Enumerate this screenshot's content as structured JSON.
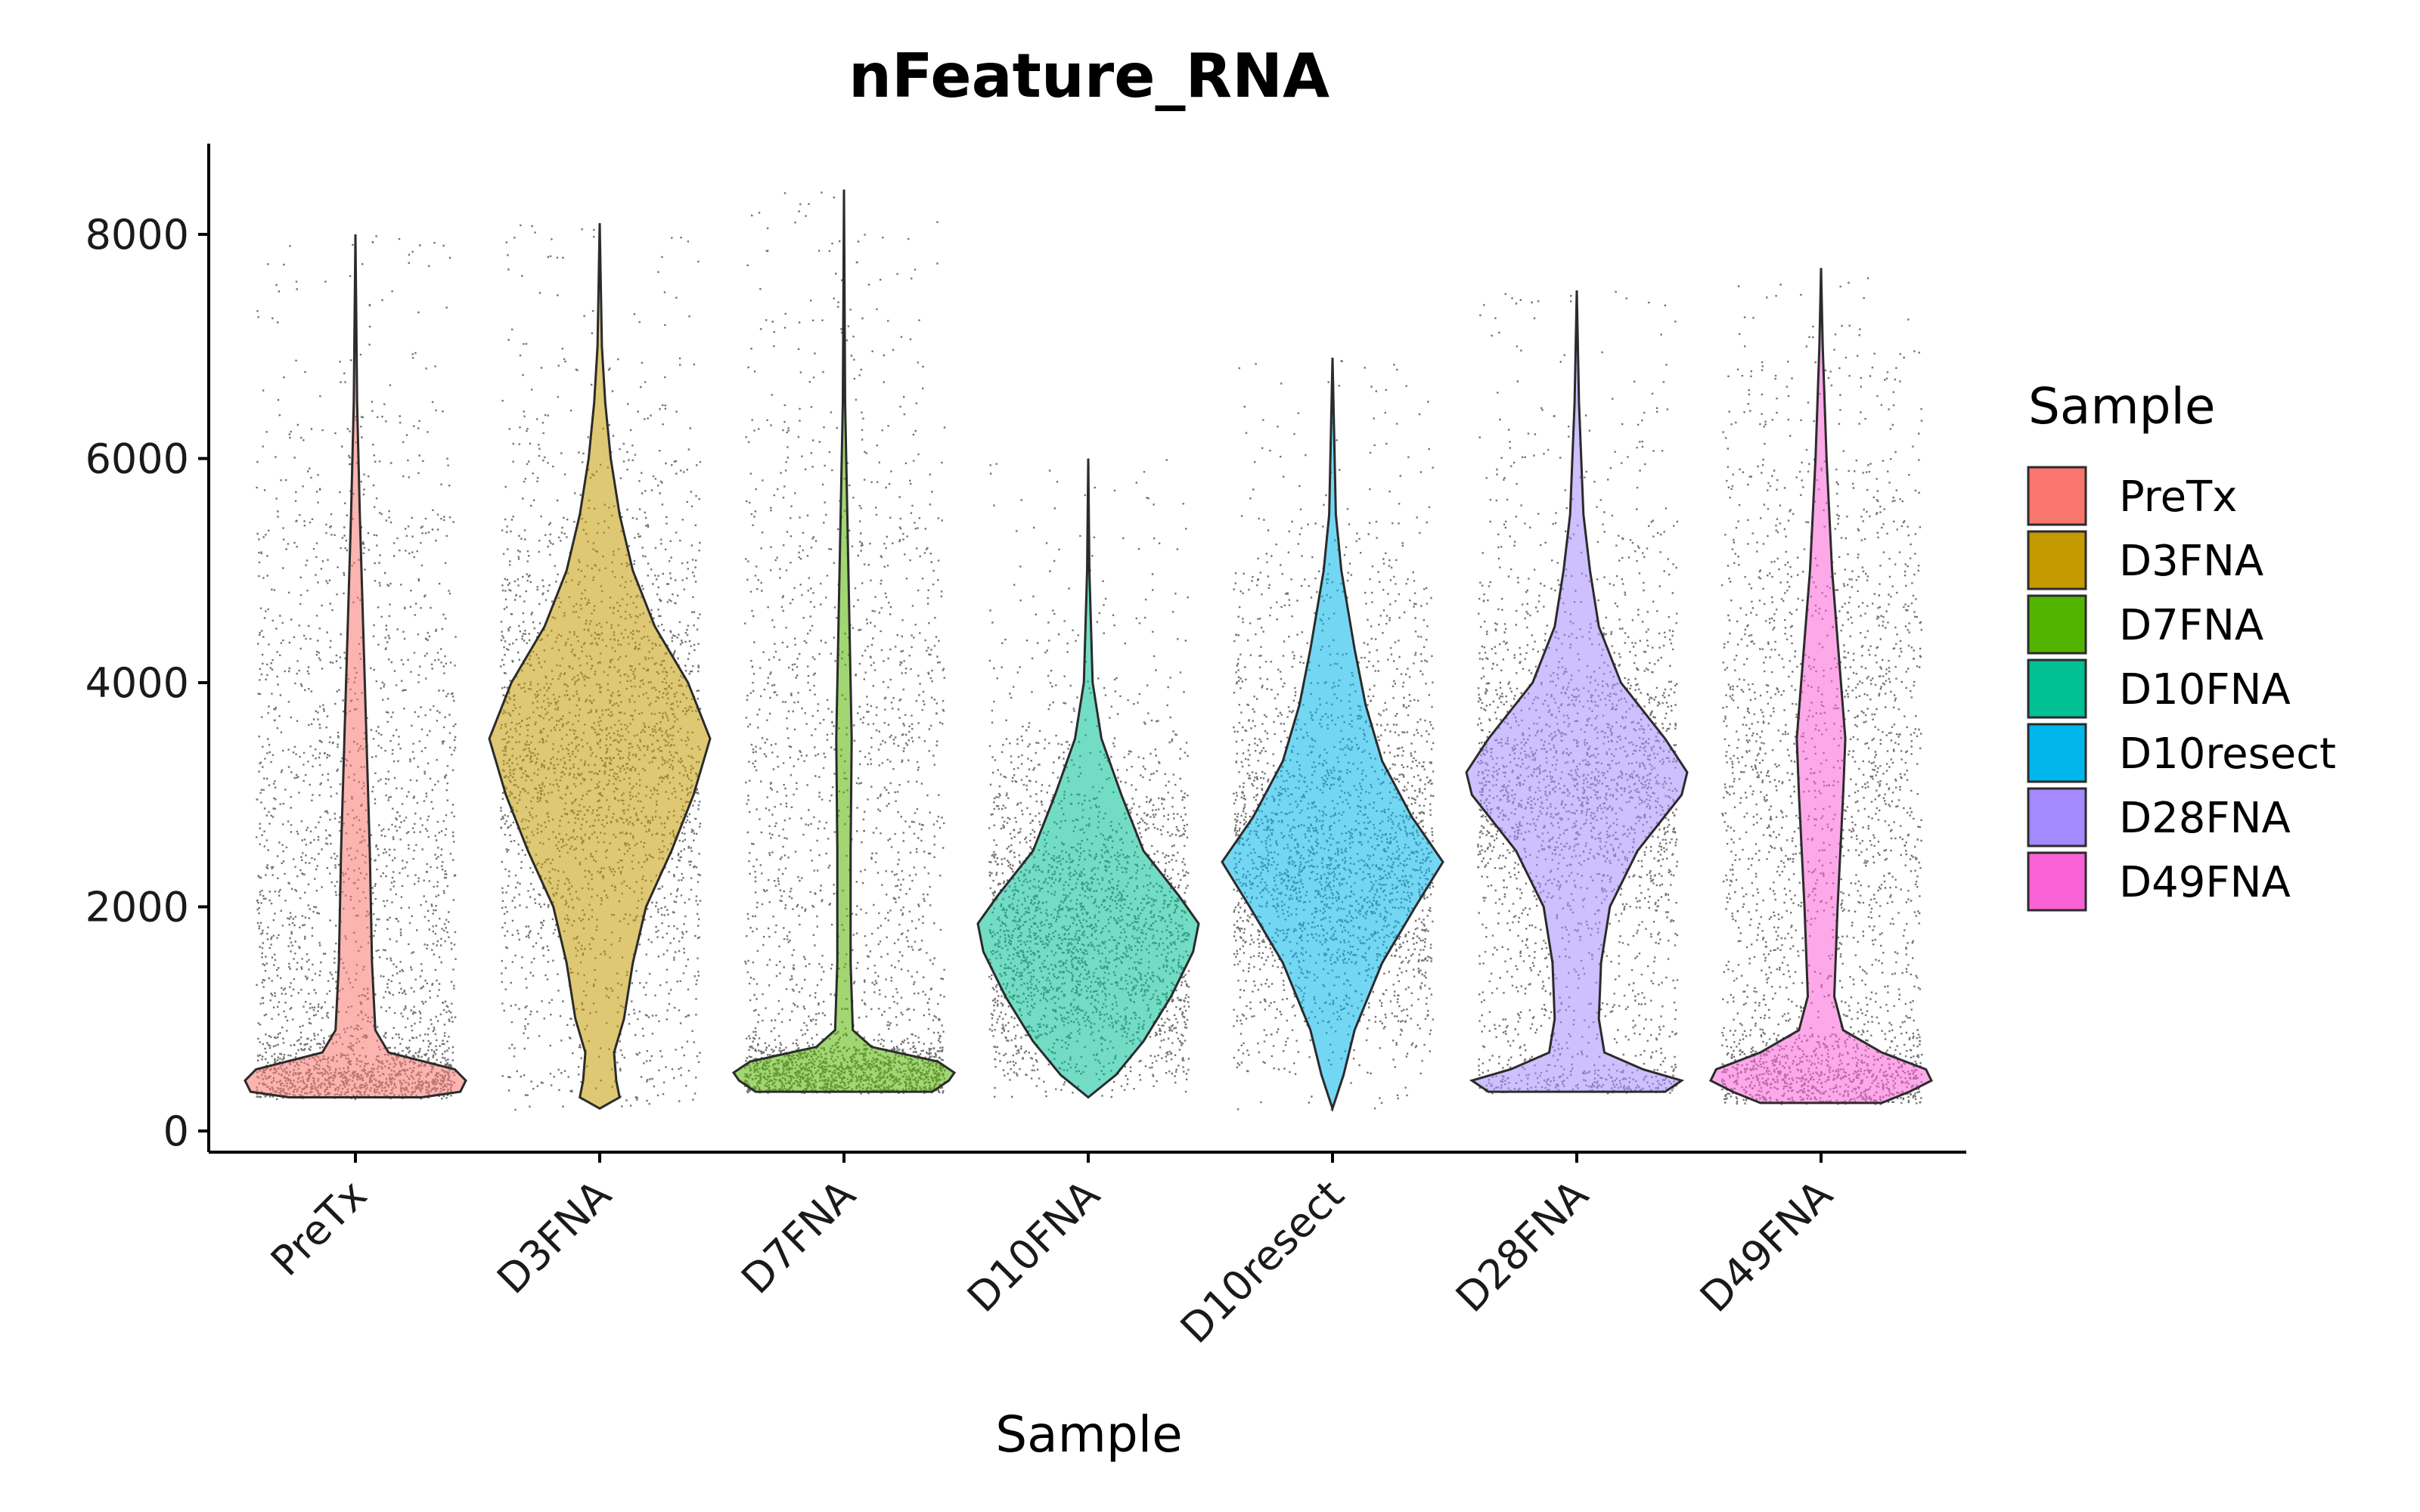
{
  "chart_data": {
    "type": "violin",
    "title": "nFeature_RNA",
    "xlabel": "Sample",
    "ylabel": "",
    "ylim": [
      -200,
      8800
    ],
    "yticks": [
      0,
      2000,
      4000,
      6000,
      8000
    ],
    "grid": false,
    "legend": {
      "title": "Sample",
      "position": "right"
    },
    "categories": [
      "PreTx",
      "D3FNA",
      "D7FNA",
      "D10FNA",
      "D10resect",
      "D28FNA",
      "D49FNA"
    ],
    "series": [
      {
        "name": "PreTx",
        "color": "#F8766D",
        "min": 300,
        "max": 8000,
        "median": 450,
        "profile": [
          [
            300,
            0.6
          ],
          [
            350,
            0.95
          ],
          [
            450,
            1.0
          ],
          [
            550,
            0.9
          ],
          [
            700,
            0.3
          ],
          [
            900,
            0.18
          ],
          [
            1500,
            0.15
          ],
          [
            2500,
            0.13
          ],
          [
            3500,
            0.1
          ],
          [
            4500,
            0.07
          ],
          [
            5500,
            0.04
          ],
          [
            6500,
            0.015
          ],
          [
            8000,
            0
          ]
        ]
      },
      {
        "name": "D3FNA",
        "color": "#C49A00",
        "min": 200,
        "max": 8100,
        "median": 3400,
        "profile": [
          [
            200,
            0
          ],
          [
            300,
            0.18
          ],
          [
            450,
            0.15
          ],
          [
            700,
            0.13
          ],
          [
            1000,
            0.22
          ],
          [
            1500,
            0.3
          ],
          [
            2000,
            0.42
          ],
          [
            2500,
            0.65
          ],
          [
            3000,
            0.85
          ],
          [
            3500,
            1.0
          ],
          [
            4000,
            0.8
          ],
          [
            4500,
            0.5
          ],
          [
            5000,
            0.3
          ],
          [
            5500,
            0.18
          ],
          [
            6000,
            0.1
          ],
          [
            6500,
            0.05
          ],
          [
            7000,
            0.02
          ],
          [
            8100,
            0
          ]
        ]
      },
      {
        "name": "D7FNA",
        "color": "#53B400",
        "min": 350,
        "max": 8400,
        "median": 500,
        "profile": [
          [
            350,
            0.8
          ],
          [
            450,
            0.95
          ],
          [
            520,
            1.0
          ],
          [
            620,
            0.85
          ],
          [
            750,
            0.25
          ],
          [
            900,
            0.08
          ],
          [
            1500,
            0.06
          ],
          [
            2500,
            0.06
          ],
          [
            3500,
            0.07
          ],
          [
            4500,
            0.05
          ],
          [
            5500,
            0.03
          ],
          [
            6500,
            0.01
          ],
          [
            8400,
            0
          ]
        ]
      },
      {
        "name": "D10FNA",
        "color": "#00C094",
        "min": 300,
        "max": 6000,
        "median": 1800,
        "profile": [
          [
            300,
            0
          ],
          [
            500,
            0.25
          ],
          [
            800,
            0.5
          ],
          [
            1200,
            0.75
          ],
          [
            1600,
            0.95
          ],
          [
            1850,
            1.0
          ],
          [
            2100,
            0.82
          ],
          [
            2500,
            0.5
          ],
          [
            3000,
            0.3
          ],
          [
            3500,
            0.12
          ],
          [
            4000,
            0.04
          ],
          [
            5000,
            0.01
          ],
          [
            6000,
            0
          ]
        ]
      },
      {
        "name": "D10resect",
        "color": "#00B6EB",
        "min": 200,
        "max": 6900,
        "median": 2400,
        "profile": [
          [
            200,
            0
          ],
          [
            500,
            0.1
          ],
          [
            900,
            0.2
          ],
          [
            1500,
            0.45
          ],
          [
            2000,
            0.75
          ],
          [
            2400,
            1.0
          ],
          [
            2800,
            0.72
          ],
          [
            3300,
            0.45
          ],
          [
            3800,
            0.3
          ],
          [
            4300,
            0.2
          ],
          [
            5000,
            0.08
          ],
          [
            5500,
            0.03
          ],
          [
            6900,
            0
          ]
        ]
      },
      {
        "name": "D28FNA",
        "color": "#A58AFF",
        "min": 350,
        "max": 7500,
        "median": 3000,
        "profile": [
          [
            350,
            0.8
          ],
          [
            450,
            0.95
          ],
          [
            550,
            0.6
          ],
          [
            700,
            0.25
          ],
          [
            1000,
            0.2
          ],
          [
            1500,
            0.22
          ],
          [
            2000,
            0.3
          ],
          [
            2500,
            0.55
          ],
          [
            3000,
            0.95
          ],
          [
            3200,
            1.0
          ],
          [
            3500,
            0.8
          ],
          [
            4000,
            0.4
          ],
          [
            4500,
            0.2
          ],
          [
            5000,
            0.12
          ],
          [
            5500,
            0.06
          ],
          [
            6500,
            0.02
          ],
          [
            7500,
            0
          ]
        ]
      },
      {
        "name": "D49FNA",
        "color": "#FB61D7",
        "min": 250,
        "max": 7700,
        "median": 500,
        "profile": [
          [
            250,
            0.55
          ],
          [
            350,
            0.8
          ],
          [
            450,
            1.0
          ],
          [
            550,
            0.95
          ],
          [
            700,
            0.55
          ],
          [
            900,
            0.2
          ],
          [
            1200,
            0.12
          ],
          [
            2000,
            0.15
          ],
          [
            3000,
            0.2
          ],
          [
            3500,
            0.22
          ],
          [
            4000,
            0.18
          ],
          [
            5000,
            0.1
          ],
          [
            6000,
            0.05
          ],
          [
            7000,
            0.015
          ],
          [
            7700,
            0
          ]
        ]
      }
    ]
  }
}
